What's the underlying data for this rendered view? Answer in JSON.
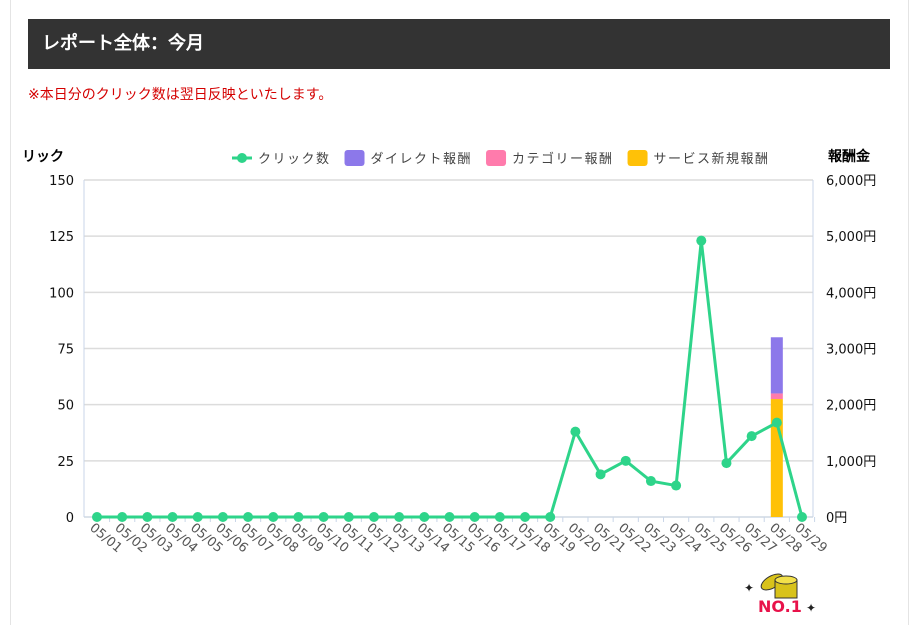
{
  "header": {
    "title": "レポート全体：今月"
  },
  "notice": "※本日分のクリック数は翌日反映といたします。",
  "logo": {
    "text": "NO.1"
  },
  "chart_data": {
    "type": "bar+line",
    "left_axis_title": "リック",
    "right_axis_title": "報酬金",
    "legend_placement": "top-right",
    "categories": [
      "05/01",
      "05/02",
      "05/03",
      "05/04",
      "05/05",
      "05/06",
      "05/07",
      "05/08",
      "05/09",
      "05/10",
      "05/11",
      "05/12",
      "05/13",
      "05/14",
      "05/15",
      "05/16",
      "05/17",
      "05/18",
      "05/19",
      "05/20",
      "05/21",
      "05/22",
      "05/23",
      "05/24",
      "05/25",
      "05/26",
      "05/27",
      "05/28",
      "05/29"
    ],
    "left_ylim": [
      0,
      150
    ],
    "left_ticks": [
      "0",
      "25",
      "50",
      "75",
      "100",
      "125",
      "150"
    ],
    "right_ylim": [
      0,
      6000
    ],
    "right_ticks": [
      "0円",
      "1,000円",
      "2,000円",
      "3,000円",
      "4,000円",
      "5,000円",
      "6,000円"
    ],
    "grid": true,
    "line_series": {
      "name": "クリック数",
      "color": "#2ed48a",
      "values": [
        0,
        0,
        0,
        0,
        0,
        0,
        0,
        0,
        0,
        0,
        0,
        0,
        0,
        0,
        0,
        0,
        0,
        0,
        0,
        38,
        19,
        25,
        16,
        14,
        123,
        24,
        36,
        42,
        0
      ]
    },
    "bar_series": [
      {
        "name": "サービス新規報酬",
        "color": "#ffc107",
        "values": [
          0,
          0,
          0,
          0,
          0,
          0,
          0,
          0,
          0,
          0,
          0,
          0,
          0,
          0,
          0,
          0,
          0,
          0,
          0,
          0,
          0,
          0,
          0,
          0,
          0,
          0,
          0,
          2100,
          0
        ]
      },
      {
        "name": "カテゴリー報酬",
        "color": "#ff7bac",
        "values": [
          0,
          0,
          0,
          0,
          0,
          0,
          0,
          0,
          0,
          0,
          0,
          0,
          0,
          0,
          0,
          0,
          0,
          0,
          0,
          0,
          0,
          0,
          0,
          0,
          0,
          0,
          0,
          100,
          0
        ]
      },
      {
        "name": "ダイレクト報酬",
        "color": "#8c78ea",
        "values": [
          0,
          0,
          0,
          0,
          0,
          0,
          0,
          0,
          0,
          0,
          0,
          0,
          0,
          0,
          0,
          0,
          0,
          0,
          0,
          0,
          0,
          0,
          0,
          0,
          0,
          0,
          0,
          1000,
          0
        ]
      }
    ],
    "legend": [
      "クリック数",
      "ダイレクト報酬",
      "カテゴリー報酬",
      "サービス新規報酬"
    ]
  }
}
